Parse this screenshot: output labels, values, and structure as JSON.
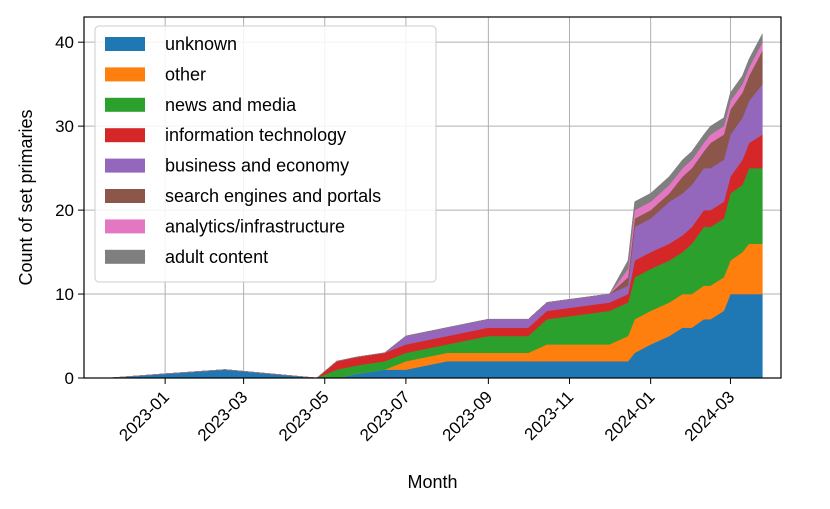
{
  "chart_data": {
    "type": "area",
    "title": "",
    "xlabel": "Month",
    "ylabel": "Count of set primaries",
    "ylim": [
      0,
      43
    ],
    "yticks": [
      0,
      10,
      20,
      30,
      40
    ],
    "xlim": [
      "2022-11-01",
      "2024-04-08"
    ],
    "xticks": [
      "2023-01",
      "2023-03",
      "2023-05",
      "2023-07",
      "2023-09",
      "2023-11",
      "2024-01",
      "2024-03"
    ],
    "grid": true,
    "legend_position": "top-left",
    "x": [
      "2022-11-20",
      "2023-01-01",
      "2023-02-15",
      "2023-04-25",
      "2023-05-10",
      "2023-05-25",
      "2023-06-15",
      "2023-07-01",
      "2023-08-01",
      "2023-09-01",
      "2023-10-01",
      "2023-10-15",
      "2023-12-01",
      "2023-12-15",
      "2023-12-20",
      "2024-01-01",
      "2024-01-15",
      "2024-01-25",
      "2024-02-01",
      "2024-02-10",
      "2024-02-15",
      "2024-02-25",
      "2024-03-01",
      "2024-03-10",
      "2024-03-15",
      "2024-03-25"
    ],
    "series": [
      {
        "name": "unknown",
        "color": "#1f77b4",
        "values": [
          0,
          0.5,
          1,
          0,
          0,
          0.5,
          1,
          1,
          2,
          2,
          2,
          2,
          2,
          2,
          3,
          4,
          5,
          6,
          6,
          7,
          7,
          8,
          10,
          10,
          10,
          10
        ]
      },
      {
        "name": "other",
        "color": "#ff7f0e",
        "values": [
          0,
          0,
          0,
          0,
          0,
          0,
          0,
          1,
          1,
          1,
          1,
          2,
          2,
          3,
          4,
          4,
          4,
          4,
          4,
          4,
          4,
          4,
          4,
          5,
          6,
          6
        ]
      },
      {
        "name": "news and media",
        "color": "#2ca02c",
        "values": [
          0,
          0,
          0,
          0,
          1,
          1,
          1,
          1,
          1,
          2,
          2,
          3,
          4,
          4,
          5,
          5,
          5,
          5,
          6,
          7,
          7,
          7,
          8,
          8,
          9,
          9
        ]
      },
      {
        "name": "information technology",
        "color": "#d62728",
        "values": [
          0,
          0,
          0,
          0,
          1,
          1,
          1,
          1,
          1,
          1,
          1,
          1,
          1,
          1,
          2,
          2,
          2,
          2,
          2,
          2,
          2,
          2,
          2,
          3,
          3,
          4
        ]
      },
      {
        "name": "business and economy",
        "color": "#9467bd",
        "values": [
          0,
          0,
          0,
          0,
          0,
          0,
          0,
          1,
          1,
          1,
          1,
          1,
          1,
          1,
          4,
          4,
          5,
          5,
          5,
          5,
          5,
          5,
          5,
          5,
          5,
          6
        ]
      },
      {
        "name": "search engines and portals",
        "color": "#8c564b",
        "values": [
          0,
          0,
          0,
          0,
          0,
          0,
          0,
          0,
          0,
          0,
          0,
          0,
          0,
          1,
          1,
          1,
          1,
          2,
          2,
          2,
          3,
          3,
          3,
          3,
          3,
          4
        ]
      },
      {
        "name": "analytics/infrastructure",
        "color": "#e377c2",
        "values": [
          0,
          0,
          0,
          0,
          0,
          0,
          0,
          0,
          0,
          0,
          0,
          0,
          0,
          1,
          1,
          1,
          1,
          1,
          1,
          1,
          1,
          1,
          1,
          1,
          1,
          1
        ]
      },
      {
        "name": "adult content",
        "color": "#7f7f7f",
        "values": [
          0,
          0,
          0,
          0,
          0,
          0,
          0,
          0,
          0,
          0,
          0,
          0,
          0,
          1,
          1,
          1,
          1,
          1,
          1,
          1,
          1,
          1,
          1,
          1,
          1,
          1
        ]
      }
    ]
  }
}
